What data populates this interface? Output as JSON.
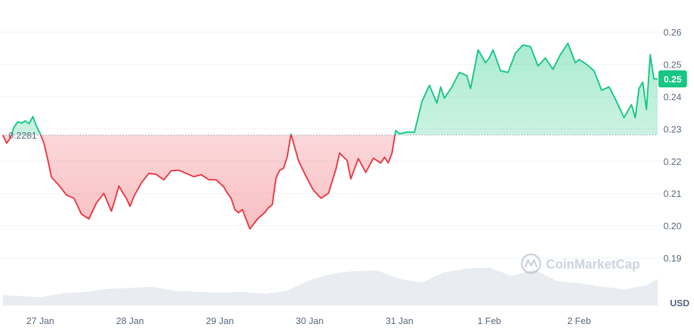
{
  "chart_data": {
    "type": "area",
    "baseline_label": "0.2281",
    "baseline_value": 0.2281,
    "current_price_label": "0.25",
    "current_price_value": 0.2455,
    "currency_label": "USD",
    "watermark": "CoinMarketCap",
    "ylim": [
      0.1845,
      0.2695
    ],
    "y_ticks": [
      {
        "value": 0.19,
        "label": "0.19"
      },
      {
        "value": 0.2,
        "label": "0.20"
      },
      {
        "value": 0.21,
        "label": "0.21"
      },
      {
        "value": 0.22,
        "label": "0.22"
      },
      {
        "value": 0.23,
        "label": "0.23"
      },
      {
        "value": 0.24,
        "label": "0.24"
      },
      {
        "value": 0.25,
        "label": "0.25"
      },
      {
        "value": 0.26,
        "label": "0.26"
      }
    ],
    "xlim": [
      "2025-01-26T14:00",
      "2025-02-02T21:00"
    ],
    "x_ticks": [
      {
        "value": "2025-01-27T00:00",
        "label": "27 Jan"
      },
      {
        "value": "2025-01-28T00:00",
        "label": "28 Jan"
      },
      {
        "value": "2025-01-29T00:00",
        "label": "29 Jan"
      },
      {
        "value": "2025-01-30T00:00",
        "label": "30 Jan"
      },
      {
        "value": "2025-01-31T00:00",
        "label": "31 Jan"
      },
      {
        "value": "2025-02-01T00:00",
        "label": "1 Feb"
      },
      {
        "value": "2025-02-02T00:00",
        "label": "2 Feb"
      }
    ],
    "price_series": {
      "x": [
        "2025-01-26T14:00",
        "2025-01-26T15:00",
        "2025-01-26T16:00",
        "2025-01-26T17:00",
        "2025-01-26T18:00",
        "2025-01-26T19:00",
        "2025-01-26T20:00",
        "2025-01-26T21:00",
        "2025-01-26T22:00",
        "2025-01-26T23:00",
        "2025-01-27T00:00",
        "2025-01-27T01:00",
        "2025-01-27T02:00",
        "2025-01-27T03:00",
        "2025-01-27T05:00",
        "2025-01-27T07:00",
        "2025-01-27T09:00",
        "2025-01-27T11:00",
        "2025-01-27T13:00",
        "2025-01-27T15:00",
        "2025-01-27T17:00",
        "2025-01-27T19:00",
        "2025-01-27T20:00",
        "2025-01-27T21:00",
        "2025-01-27T22:00",
        "2025-01-27T23:00",
        "2025-01-28T00:00",
        "2025-01-28T01:00",
        "2025-01-28T03:00",
        "2025-01-28T05:00",
        "2025-01-28T07:00",
        "2025-01-28T09:00",
        "2025-01-28T11:00",
        "2025-01-28T13:00",
        "2025-01-28T15:00",
        "2025-01-28T17:00",
        "2025-01-28T19:00",
        "2025-01-28T21:00",
        "2025-01-28T23:00",
        "2025-01-29T01:00",
        "2025-01-29T02:00",
        "2025-01-29T03:00",
        "2025-01-29T04:00",
        "2025-01-29T05:00",
        "2025-01-29T06:00",
        "2025-01-29T08:00",
        "2025-01-29T10:00",
        "2025-01-29T12:00",
        "2025-01-29T13:00",
        "2025-01-29T14:00",
        "2025-01-29T15:00",
        "2025-01-29T16:00",
        "2025-01-29T17:00",
        "2025-01-29T18:00",
        "2025-01-29T19:00",
        "2025-01-29T21:00",
        "2025-01-29T23:00",
        "2025-01-30T01:00",
        "2025-01-30T03:00",
        "2025-01-30T05:00",
        "2025-01-30T07:00",
        "2025-01-30T08:00",
        "2025-01-30T10:00",
        "2025-01-30T11:00",
        "2025-01-30T13:00",
        "2025-01-30T15:00",
        "2025-01-30T17:00",
        "2025-01-30T19:00",
        "2025-01-30T20:00",
        "2025-01-30T21:00",
        "2025-01-30T22:00",
        "2025-01-30T23:00",
        "2025-01-31T00:00",
        "2025-01-31T02:00",
        "2025-01-31T04:00",
        "2025-01-31T06:00",
        "2025-01-31T08:00",
        "2025-01-31T10:00",
        "2025-01-31T11:00",
        "2025-01-31T12:00",
        "2025-01-31T14:00",
        "2025-01-31T16:00",
        "2025-01-31T18:00",
        "2025-01-31T19:00",
        "2025-01-31T21:00",
        "2025-01-31T23:00",
        "2025-02-01T00:00",
        "2025-02-01T01:00",
        "2025-02-01T03:00",
        "2025-02-01T05:00",
        "2025-02-01T07:00",
        "2025-02-01T09:00",
        "2025-02-01T11:00",
        "2025-02-01T13:00",
        "2025-02-01T15:00",
        "2025-02-01T17:00",
        "2025-02-01T19:00",
        "2025-02-01T21:00",
        "2025-02-01T23:00",
        "2025-02-02T00:00",
        "2025-02-02T02:00",
        "2025-02-02T04:00",
        "2025-02-02T06:00",
        "2025-02-02T08:00",
        "2025-02-02T10:00",
        "2025-02-02T12:00",
        "2025-02-02T14:00",
        "2025-02-02T15:00",
        "2025-02-02T16:00",
        "2025-02-02T17:00",
        "2025-02-02T18:00",
        "2025-02-02T19:00",
        "2025-02-02T20:00",
        "2025-02-02T21:00"
      ],
      "y": [
        0.2281,
        0.2256,
        0.2272,
        0.2306,
        0.2322,
        0.2318,
        0.2325,
        0.2316,
        0.2338,
        0.2308,
        0.2285,
        0.2255,
        0.2205,
        0.215,
        0.2125,
        0.2095,
        0.2085,
        0.2036,
        0.2021,
        0.207,
        0.21,
        0.2045,
        0.2082,
        0.2123,
        0.2103,
        0.2085,
        0.206,
        0.209,
        0.2132,
        0.2162,
        0.2159,
        0.2142,
        0.217,
        0.2172,
        0.2162,
        0.2152,
        0.2158,
        0.2143,
        0.2142,
        0.2121,
        0.2101,
        0.2085,
        0.205,
        0.204,
        0.205,
        0.199,
        0.202,
        0.2041,
        0.2056,
        0.2065,
        0.2148,
        0.2172,
        0.2178,
        0.2213,
        0.2284,
        0.2202,
        0.2153,
        0.211,
        0.2085,
        0.21,
        0.2175,
        0.2225,
        0.2202,
        0.2145,
        0.2208,
        0.2165,
        0.2209,
        0.2194,
        0.2212,
        0.2195,
        0.2225,
        0.2295,
        0.2285,
        0.229,
        0.229,
        0.2385,
        0.2435,
        0.238,
        0.243,
        0.2395,
        0.243,
        0.2475,
        0.2465,
        0.2425,
        0.2545,
        0.2505,
        0.252,
        0.2545,
        0.248,
        0.2475,
        0.2535,
        0.256,
        0.2555,
        0.2495,
        0.252,
        0.2485,
        0.253,
        0.2565,
        0.2505,
        0.2515,
        0.25,
        0.248,
        0.242,
        0.243,
        0.2385,
        0.2335,
        0.2375,
        0.2335,
        0.2425,
        0.2445,
        0.236,
        0.253,
        0.2455,
        0.2455
      ]
    },
    "volume_series": {
      "x": [
        "2025-01-26T14:00",
        "2025-01-27T00:00",
        "2025-01-27T06:00",
        "2025-01-27T12:00",
        "2025-01-27T18:00",
        "2025-01-28T00:00",
        "2025-01-28T06:00",
        "2025-01-28T12:00",
        "2025-01-28T18:00",
        "2025-01-29T00:00",
        "2025-01-29T06:00",
        "2025-01-29T12:00",
        "2025-01-29T18:00",
        "2025-01-30T00:00",
        "2025-01-30T06:00",
        "2025-01-30T12:00",
        "2025-01-30T18:00",
        "2025-01-31T00:00",
        "2025-01-31T06:00",
        "2025-01-31T12:00",
        "2025-01-31T18:00",
        "2025-02-01T00:00",
        "2025-02-01T06:00",
        "2025-02-01T12:00",
        "2025-02-01T18:00",
        "2025-02-02T00:00",
        "2025-02-02T06:00",
        "2025-02-02T12:00",
        "2025-02-02T18:00",
        "2025-02-02T21:00"
      ],
      "y": [
        0.27,
        0.21,
        0.31,
        0.35,
        0.43,
        0.45,
        0.48,
        0.38,
        0.35,
        0.33,
        0.35,
        0.3,
        0.38,
        0.65,
        0.82,
        0.88,
        0.9,
        0.68,
        0.59,
        0.85,
        0.95,
        0.97,
        0.76,
        0.92,
        0.63,
        0.57,
        0.49,
        0.41,
        0.52,
        0.68
      ]
    }
  }
}
